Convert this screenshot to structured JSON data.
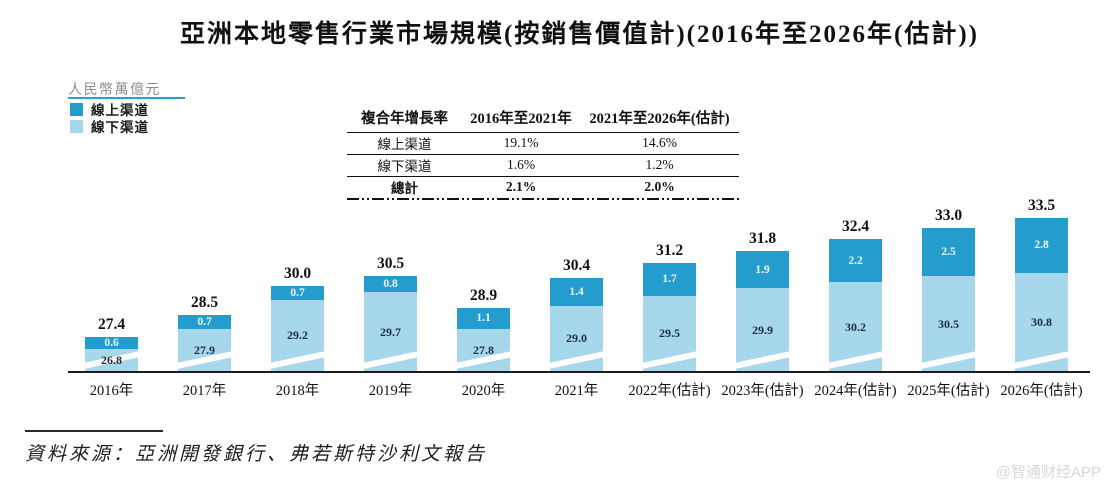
{
  "title": "亞洲本地零售行業市場規模(按銷售價值計)(2016年至2026年(估計))",
  "y_axis_label": "人民幣萬億元",
  "legend": {
    "online_label": "線上渠道",
    "offline_label": "線下渠道"
  },
  "colors": {
    "online": "#249dce",
    "offline": "#a7d7ea",
    "underline": "#2a9fd0",
    "axis": "#1c1c1c"
  },
  "cagr_table": {
    "header": {
      "col0": "複合年增長率",
      "col1": "2016年至2021年",
      "col2": "2021年至2026年(估計)"
    },
    "rows": [
      {
        "label": "線上渠道",
        "v1": "19.1%",
        "v2": "14.6%"
      },
      {
        "label": "線下渠道",
        "v1": "1.6%",
        "v2": "1.2%"
      },
      {
        "label": "總計",
        "v1": "2.1%",
        "v2": "2.0%"
      }
    ]
  },
  "chart_data": {
    "type": "bar",
    "stacked": true,
    "title": "亞洲本地零售行業市場規模(按銷售價值計)(2016年至2026年(估計))",
    "ylabel": "人民幣萬億元",
    "xlabel": "",
    "axis_break": true,
    "grid": false,
    "legend_position": "top-left",
    "categories": [
      "2016年",
      "2017年",
      "2018年",
      "2019年",
      "2020年",
      "2021年",
      "2022年(估計)",
      "2023年(估計)",
      "2024年(估計)",
      "2025年(估計)",
      "2026年(估計)"
    ],
    "series": [
      {
        "name": "線上渠道",
        "values": [
          0.6,
          0.7,
          0.7,
          0.8,
          1.1,
          1.4,
          1.7,
          1.9,
          2.2,
          2.5,
          2.8
        ]
      },
      {
        "name": "線下渠道",
        "values": [
          26.8,
          27.9,
          29.2,
          29.7,
          27.8,
          29.0,
          29.5,
          29.9,
          30.2,
          30.5,
          30.8
        ]
      }
    ],
    "totals": [
      27.4,
      28.5,
      30.0,
      30.5,
      28.9,
      30.4,
      31.2,
      31.8,
      32.4,
      33.0,
      33.5
    ]
  },
  "source": "資料來源：亞洲開發銀行、弗若斯特沙利文報告",
  "watermark": "@智通财经APP"
}
